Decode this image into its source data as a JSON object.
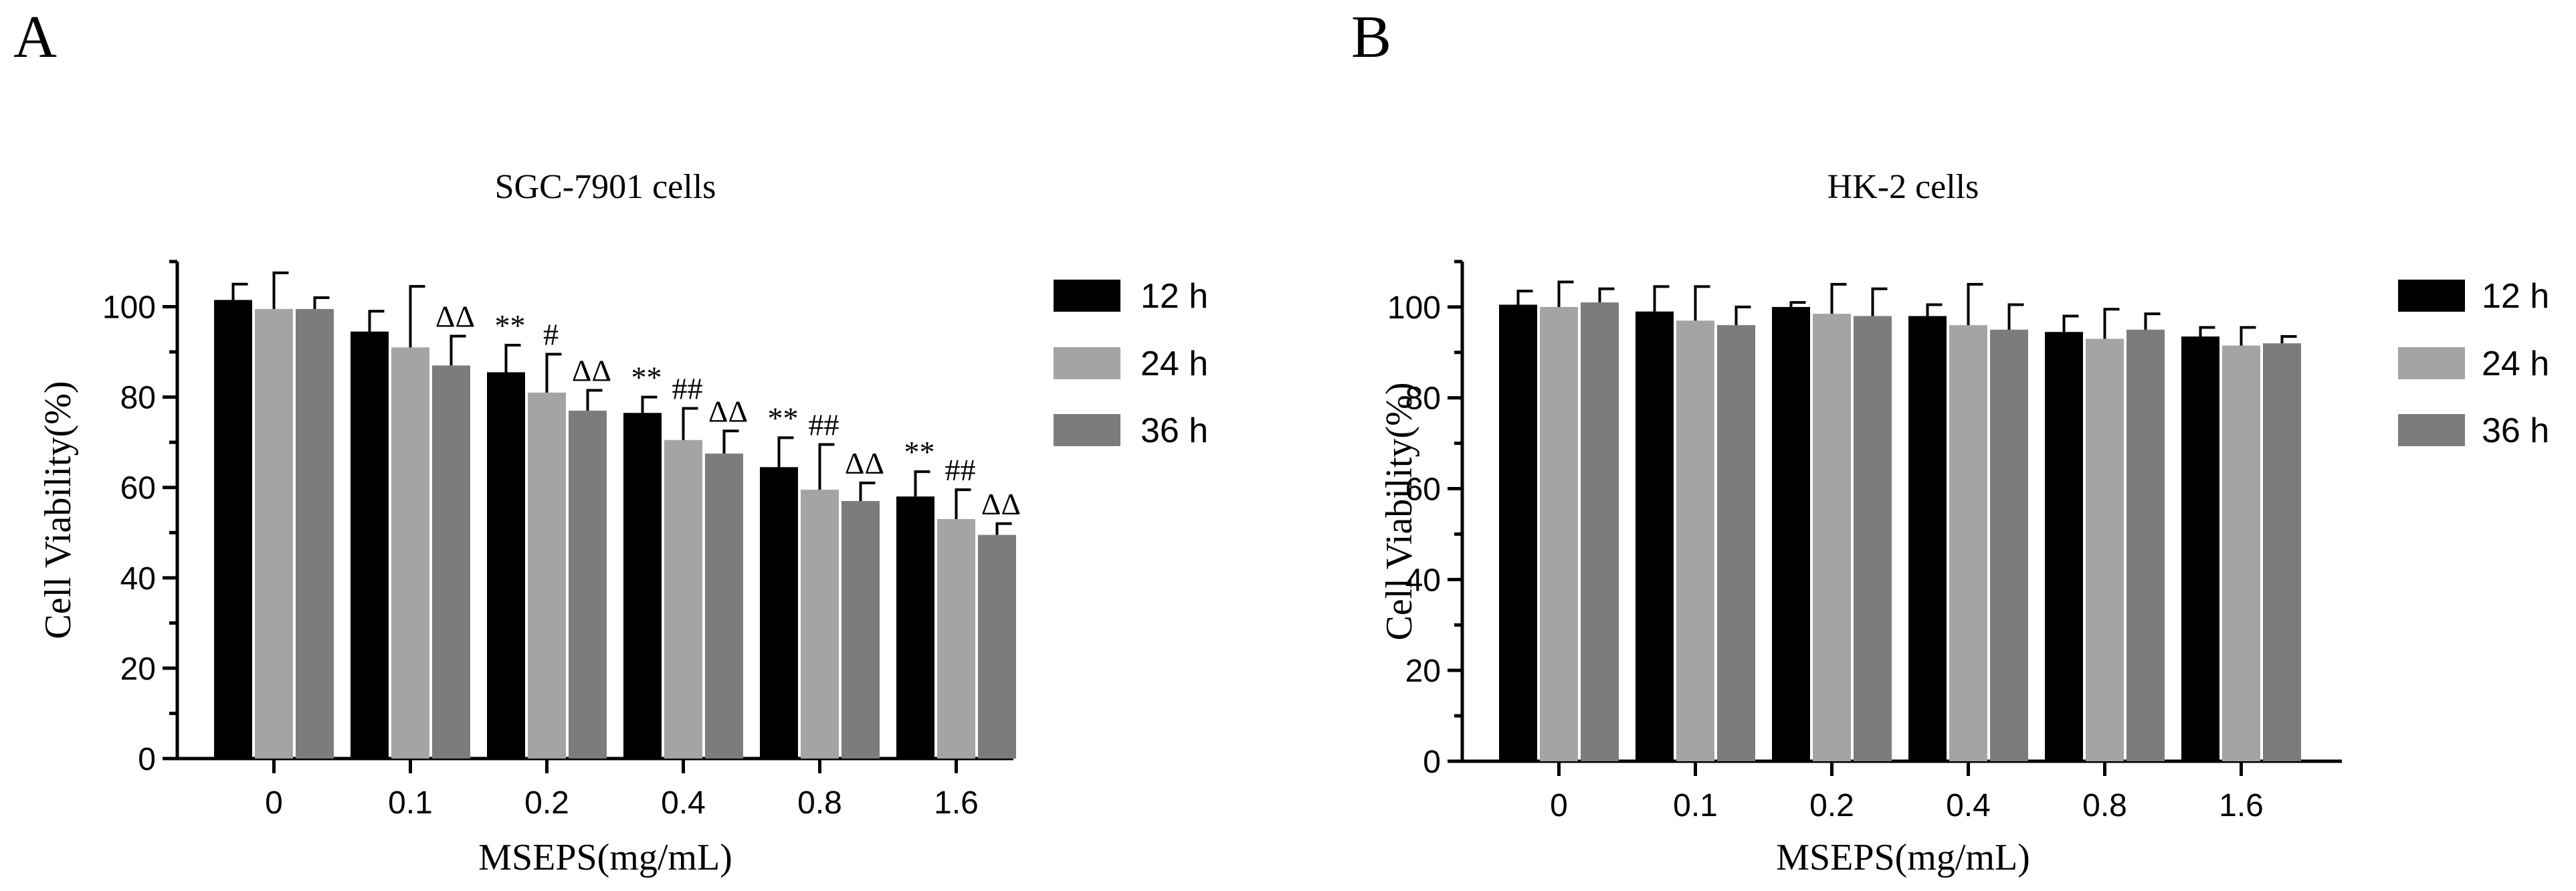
{
  "chart_data": [
    {
      "panel_label": "A",
      "type": "bar",
      "title": "SGC-7901 cells",
      "xlabel": "MSEPS(mg/mL)",
      "ylabel": "Cell Viability(%)",
      "ylim": [
        0,
        110
      ],
      "yticks": [
        "0",
        "20",
        "40",
        "60",
        "80",
        "100"
      ],
      "categories": [
        "0",
        "0.1",
        "0.2",
        "0.4",
        "0.8",
        "1.6"
      ],
      "series": [
        {
          "name": "12 h",
          "color": "#000000",
          "values": [
            101.5,
            94.5,
            85.5,
            76.5,
            64.5,
            58
          ],
          "errors": [
            3.5,
            4.5,
            6,
            3.5,
            6.5,
            5.5
          ]
        },
        {
          "name": "24 h",
          "color": "#a4a4a4",
          "values": [
            99.5,
            91,
            81,
            70.5,
            59.5,
            53
          ],
          "errors": [
            8,
            13.5,
            8.5,
            7,
            10,
            6.5
          ]
        },
        {
          "name": "36 h",
          "color": "#7c7c7c",
          "values": [
            99.5,
            87,
            77,
            67.5,
            57,
            49.5
          ],
          "errors": [
            2.5,
            6.5,
            4.5,
            5,
            4,
            2.5
          ]
        }
      ],
      "annotations": [
        {
          "category": "0.1",
          "series": "36 h",
          "text": "ΔΔ"
        },
        {
          "category": "0.2",
          "series": "12 h",
          "text": "**"
        },
        {
          "category": "0.2",
          "series": "24 h",
          "text": "#"
        },
        {
          "category": "0.2",
          "series": "36 h",
          "text": "ΔΔ"
        },
        {
          "category": "0.4",
          "series": "12 h",
          "text": "**"
        },
        {
          "category": "0.4",
          "series": "24 h",
          "text": "##"
        },
        {
          "category": "0.4",
          "series": "36 h",
          "text": "ΔΔ"
        },
        {
          "category": "0.8",
          "series": "12 h",
          "text": "**"
        },
        {
          "category": "0.8",
          "series": "24 h",
          "text": "##"
        },
        {
          "category": "0.8",
          "series": "36 h",
          "text": "ΔΔ"
        },
        {
          "category": "1.6",
          "series": "12 h",
          "text": "**"
        },
        {
          "category": "1.6",
          "series": "24 h",
          "text": "##"
        },
        {
          "category": "1.6",
          "series": "36 h",
          "text": "ΔΔ"
        }
      ],
      "legend": [
        "12 h",
        "24 h",
        "36 h"
      ]
    },
    {
      "panel_label": "B",
      "type": "bar",
      "title": "HK-2 cells",
      "xlabel": "MSEPS(mg/mL)",
      "ylabel": "Cell Viability(%)",
      "ylim": [
        0,
        110
      ],
      "yticks": [
        "0",
        "20",
        "40",
        "60",
        "80",
        "100"
      ],
      "categories": [
        "0",
        "0.1",
        "0.2",
        "0.4",
        "0.8",
        "1.6"
      ],
      "series": [
        {
          "name": "12 h",
          "color": "#000000",
          "values": [
            100.5,
            99,
            100,
            98,
            94.5,
            93.5
          ],
          "errors": [
            3,
            5.5,
            1,
            2.5,
            3.5,
            2
          ]
        },
        {
          "name": "24 h",
          "color": "#a4a4a4",
          "values": [
            100,
            97,
            98.5,
            96,
            93,
            91.5
          ],
          "errors": [
            5.5,
            7.5,
            6.5,
            9,
            6.5,
            4
          ]
        },
        {
          "name": "36 h",
          "color": "#7c7c7c",
          "values": [
            101,
            96,
            98,
            95,
            95,
            92
          ],
          "errors": [
            3,
            4,
            6,
            5.5,
            3.5,
            1.5
          ]
        }
      ],
      "annotations": [],
      "legend": [
        "12 h",
        "24 h",
        "36 h"
      ]
    }
  ]
}
